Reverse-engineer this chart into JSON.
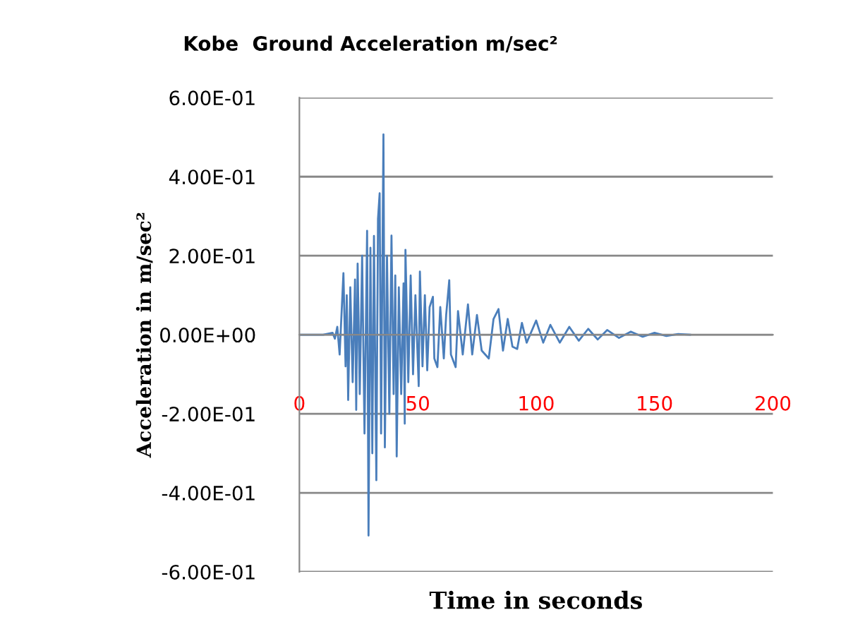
{
  "chart_data": {
    "type": "line",
    "title": "Kobe  Ground Acceleration m/sec²",
    "xlabel": "Time in seconds",
    "ylabel": "Acceleration in m/sec²",
    "xlim": [
      0,
      200
    ],
    "xticks": [
      0,
      50,
      100,
      150,
      200
    ],
    "ylim": [
      -0.6,
      0.6
    ],
    "yticks": [
      {
        "value": -0.6,
        "label": "-6.00E-01"
      },
      {
        "value": -0.4,
        "label": "-4.00E-01"
      },
      {
        "value": -0.2,
        "label": "-2.00E-01"
      },
      {
        "value": 0,
        "label": "0.00E+00"
      },
      {
        "value": 0.2,
        "label": "2.00E-01"
      },
      {
        "value": 0.4,
        "label": "4.00E-01"
      },
      {
        "value": 0.6,
        "label": "6.00E-01"
      }
    ],
    "grid": "y",
    "legend": false,
    "marker": "none",
    "line_style": "solid",
    "series": [
      {
        "color": "#4a7ebb",
        "x": [
          0,
          10,
          14,
          15,
          16,
          17,
          18.6,
          19.5,
          20,
          20.6,
          21.5,
          22.5,
          23.5,
          24,
          24.6,
          25.5,
          26.5,
          27.5,
          28.6,
          29.2,
          30,
          30.8,
          31.5,
          32.5,
          33.2,
          33.9,
          34.5,
          35.5,
          36.1,
          37,
          38,
          38.9,
          39.8,
          40.5,
          41.1,
          42,
          43,
          44,
          44.5,
          44.8,
          46,
          47,
          48,
          49,
          50.4,
          50.9,
          52,
          53,
          54,
          55,
          56.4,
          57,
          58.3,
          59.5,
          61,
          62,
          63.3,
          64,
          66,
          67,
          69,
          71.2,
          73,
          75,
          77,
          80,
          82,
          84.1,
          86,
          88,
          90,
          92,
          94,
          96,
          100,
          103,
          106,
          110,
          114,
          118,
          122,
          126,
          130,
          135,
          140,
          145,
          150,
          155,
          160,
          165
        ],
        "values": [
          0,
          0,
          0.005,
          -0.01,
          0.02,
          -0.05,
          0.156,
          -0.08,
          0.1,
          -0.165,
          0.12,
          -0.12,
          0.14,
          -0.19,
          0.18,
          -0.15,
          0.2,
          -0.25,
          0.263,
          -0.508,
          0.22,
          -0.3,
          0.25,
          -0.368,
          0.293,
          0.358,
          -0.25,
          0.507,
          -0.285,
          0.2,
          -0.2,
          0.251,
          -0.15,
          0.15,
          -0.308,
          0.12,
          -0.15,
          0.13,
          -0.225,
          0.215,
          -0.12,
          0.15,
          -0.1,
          0.1,
          -0.13,
          0.16,
          -0.08,
          0.1,
          -0.09,
          0.07,
          0.096,
          -0.06,
          -0.082,
          0.07,
          -0.06,
          0.05,
          0.138,
          -0.05,
          -0.082,
          0.06,
          -0.05,
          0.077,
          -0.05,
          0.05,
          -0.04,
          -0.06,
          0.04,
          0.065,
          -0.04,
          0.04,
          -0.03,
          -0.036,
          0.03,
          -0.02,
          0.036,
          -0.02,
          0.025,
          -0.02,
          0.02,
          -0.015,
          0.015,
          -0.012,
          0.012,
          -0.008,
          0.008,
          -0.005,
          0.005,
          -0.003,
          0.002,
          0
        ]
      }
    ]
  }
}
